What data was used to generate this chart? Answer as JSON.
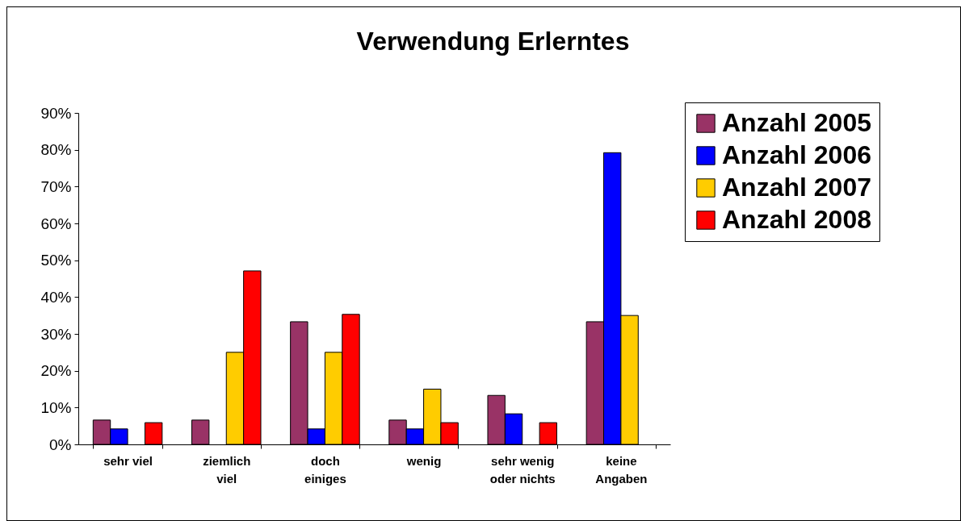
{
  "chart_data": {
    "type": "bar",
    "title": "Verwendung Erlerntes",
    "categories": [
      "sehr viel",
      "ziemlich viel",
      "doch einiges",
      "wenig",
      "sehr wenig oder nichts",
      "keine Angaben"
    ],
    "series": [
      {
        "name": "Anzahl 2005",
        "color": "#993366",
        "values": [
          6.6,
          6.6,
          33.3,
          6.6,
          13.3,
          33.3
        ]
      },
      {
        "name": "Anzahl 2006",
        "color": "#0000ff",
        "values": [
          4.2,
          null,
          4.2,
          4.2,
          8.3,
          79.2
        ]
      },
      {
        "name": "Anzahl 2007",
        "color": "#ffcc00",
        "values": [
          null,
          25,
          25,
          15,
          null,
          35
        ]
      },
      {
        "name": "Anzahl 2008",
        "color": "#ff0000",
        "values": [
          5.9,
          47.1,
          35.3,
          5.9,
          5.9,
          null
        ]
      }
    ],
    "ylim": [
      0,
      90
    ],
    "yticks": [
      {
        "value": 0,
        "label": "0%"
      },
      {
        "value": 10,
        "label": "10%"
      },
      {
        "value": 20,
        "label": "20%"
      },
      {
        "value": 30,
        "label": "30%"
      },
      {
        "value": 40,
        "label": "40%"
      },
      {
        "value": 50,
        "label": "50%"
      },
      {
        "value": 60,
        "label": "60%"
      },
      {
        "value": 70,
        "label": "70%"
      },
      {
        "value": 80,
        "label": "80%"
      },
      {
        "value": 90,
        "label": "90%"
      }
    ],
    "grid": false,
    "legend": "top right"
  }
}
